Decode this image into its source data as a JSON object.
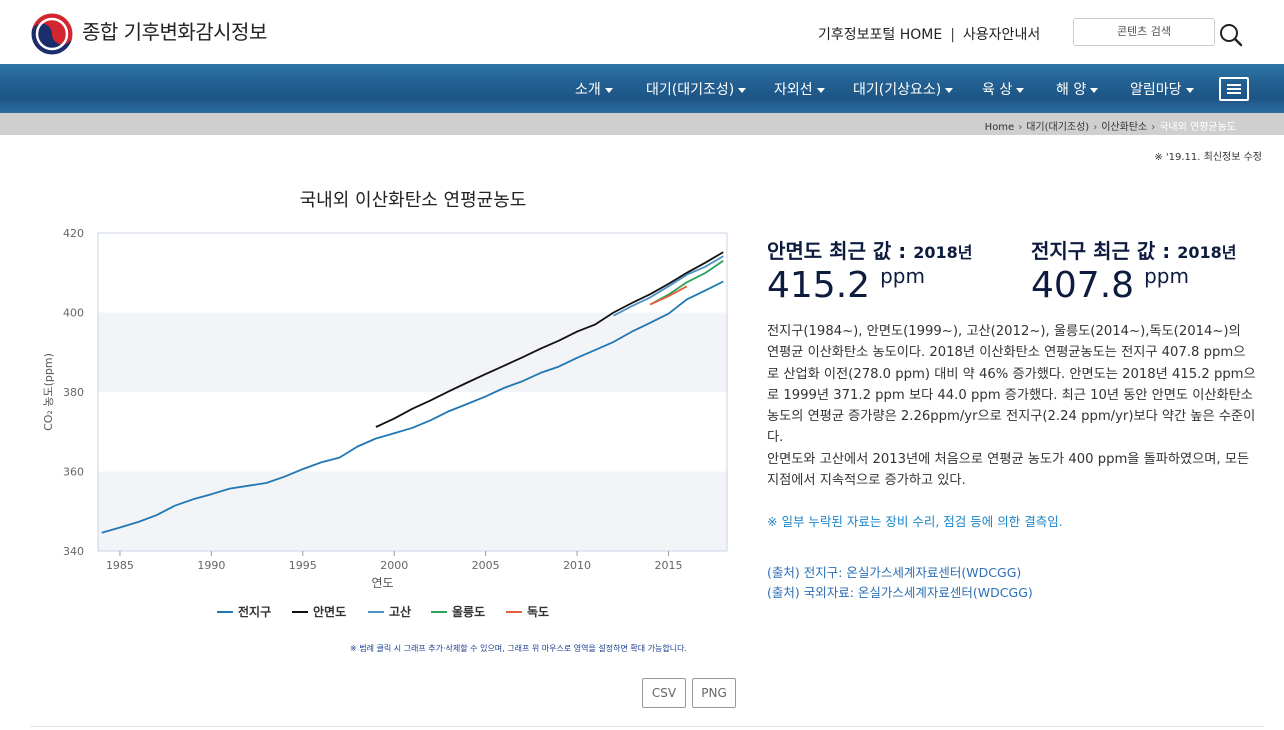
{
  "header": {
    "site_title": "종합 기후변화감시정보",
    "links": [
      "기후정보포털 HOME",
      "사용자안내서"
    ],
    "search_placeholder": "콘텐츠 검색"
  },
  "nav": {
    "items": [
      "소개",
      "대기(대기조성)",
      "자외선",
      "대기(기상요소)",
      "육 상",
      "해 양",
      "알림마당"
    ]
  },
  "breadcrumb": [
    "Home",
    "대기(대기조성)",
    "이산화탄소",
    "국내외 연평균농도"
  ],
  "update_note": "※ '19.11. 최신정보 수정",
  "chart_hint": "※ 범례 클릭 시 그래프 추가·삭제할 수 있으며, 그래프 위 마우스로 영역을 설정하면 확대 가능합니다.",
  "download": {
    "csv": "CSV",
    "png": "PNG"
  },
  "stats": [
    {
      "label": "안면도 최근 값 :",
      "year": "2018년",
      "value": "415.2",
      "unit": "ppm"
    },
    {
      "label": "전지구 최근 값 :",
      "year": "2018년",
      "value": "407.8",
      "unit": "ppm"
    }
  ],
  "description": [
    "전지구(1984~), 안면도(1999~), 고산(2012~), 울릉도(2014~),독도(2014~)의 연평균 이산화탄소 농도이다. 2018년 이산화탄소 연평균농도는 전지구 407.8 ppm으로 산업화 이전(278.0 ppm) 대비 약 46% 증가했다. 안면도는 2018년 415.2 ppm으로 1999년 371.2 ppm 보다 44.0 ppm 증가했다. 최근 10년 동안 안면도 이산화탄소 농도의 연평균 증가량은 2.26ppm/yr으로 전지구(2.24 ppm/yr)보다 약간 높은 수준이다.",
    "안면도와 고산에서 2013년에 처음으로 연평균 농도가 400 ppm을 돌파하였으며, 모든 지점에서 지속적으로 증가하고 있다."
  ],
  "missing_note": "※ 일부 누락된 자료는 장비 수리, 점검 등에 의한 결측임.",
  "sources": [
    "(출처) 전지구: 온실가스세계자료센터(WDCGG)",
    "(출처) 국외자료: 온실가스세계자료센터(WDCGG)"
  ],
  "colors": {
    "global": "#1f77b4",
    "anmyeon": "#111111",
    "gosan": "#4a90c9",
    "ulleung": "#2ca25f",
    "dokdo": "#e0603a",
    "nav": "#225f90"
  },
  "chart_data": {
    "type": "line",
    "title": "국내외 이산화탄소 연평균농도",
    "xlabel": "연도",
    "ylabel": "CO₂ 농도(ppm)",
    "xlim": [
      1983.8,
      2018.2
    ],
    "ylim": [
      340,
      420
    ],
    "xticks": [
      1985,
      1990,
      1995,
      2000,
      2005,
      2010,
      2015
    ],
    "yticks": [
      340,
      360,
      380,
      400,
      420
    ],
    "legend_position": "bottom",
    "series": [
      {
        "name": "전지구",
        "color": "#1f77b4",
        "x": [
          1984,
          1985,
          1986,
          1987,
          1988,
          1989,
          1990,
          1991,
          1992,
          1993,
          1994,
          1995,
          1996,
          1997,
          1998,
          1999,
          2000,
          2001,
          2002,
          2003,
          2004,
          2005,
          2006,
          2007,
          2008,
          2009,
          2010,
          2011,
          2012,
          2013,
          2014,
          2015,
          2016,
          2017,
          2018
        ],
        "values": [
          344.6,
          345.9,
          347.3,
          349.0,
          351.4,
          353.0,
          354.3,
          355.7,
          356.4,
          357.1,
          358.7,
          360.6,
          362.3,
          363.5,
          366.3,
          368.3,
          369.6,
          371.0,
          372.9,
          375.2,
          377.0,
          378.9,
          381.0,
          382.7,
          384.8,
          386.4,
          388.6,
          390.6,
          392.6,
          395.2,
          397.4,
          399.7,
          403.3,
          405.5,
          407.8
        ]
      },
      {
        "name": "안면도",
        "color": "#111111",
        "x": [
          1999,
          2000,
          2001,
          2002,
          2003,
          2004,
          2005,
          2006,
          2007,
          2008,
          2009,
          2010,
          2011,
          2012,
          2013,
          2014,
          2015,
          2016,
          2017,
          2018
        ],
        "values": [
          371.2,
          373.3,
          375.8,
          377.9,
          380.2,
          382.4,
          384.5,
          386.6,
          388.7,
          390.9,
          392.9,
          395.2,
          397.0,
          400.0,
          402.4,
          404.6,
          407.2,
          410.0,
          412.5,
          415.2
        ]
      },
      {
        "name": "고산",
        "color": "#4a90c9",
        "x": [
          2012,
          2013,
          2014,
          2015,
          2016,
          2017,
          2018
        ],
        "values": [
          399.2,
          401.6,
          403.8,
          406.6,
          409.5,
          411.5,
          414.2
        ]
      },
      {
        "name": "울릉도",
        "color": "#2ca25f",
        "x": [
          2014,
          2015,
          2016,
          2017,
          2018
        ],
        "values": [
          402.0,
          404.5,
          407.6,
          409.9,
          413.0
        ]
      },
      {
        "name": "독도",
        "color": "#e0603a",
        "x": [
          2014,
          2015,
          2016
        ],
        "values": [
          402.0,
          404.1,
          406.6
        ]
      }
    ]
  }
}
